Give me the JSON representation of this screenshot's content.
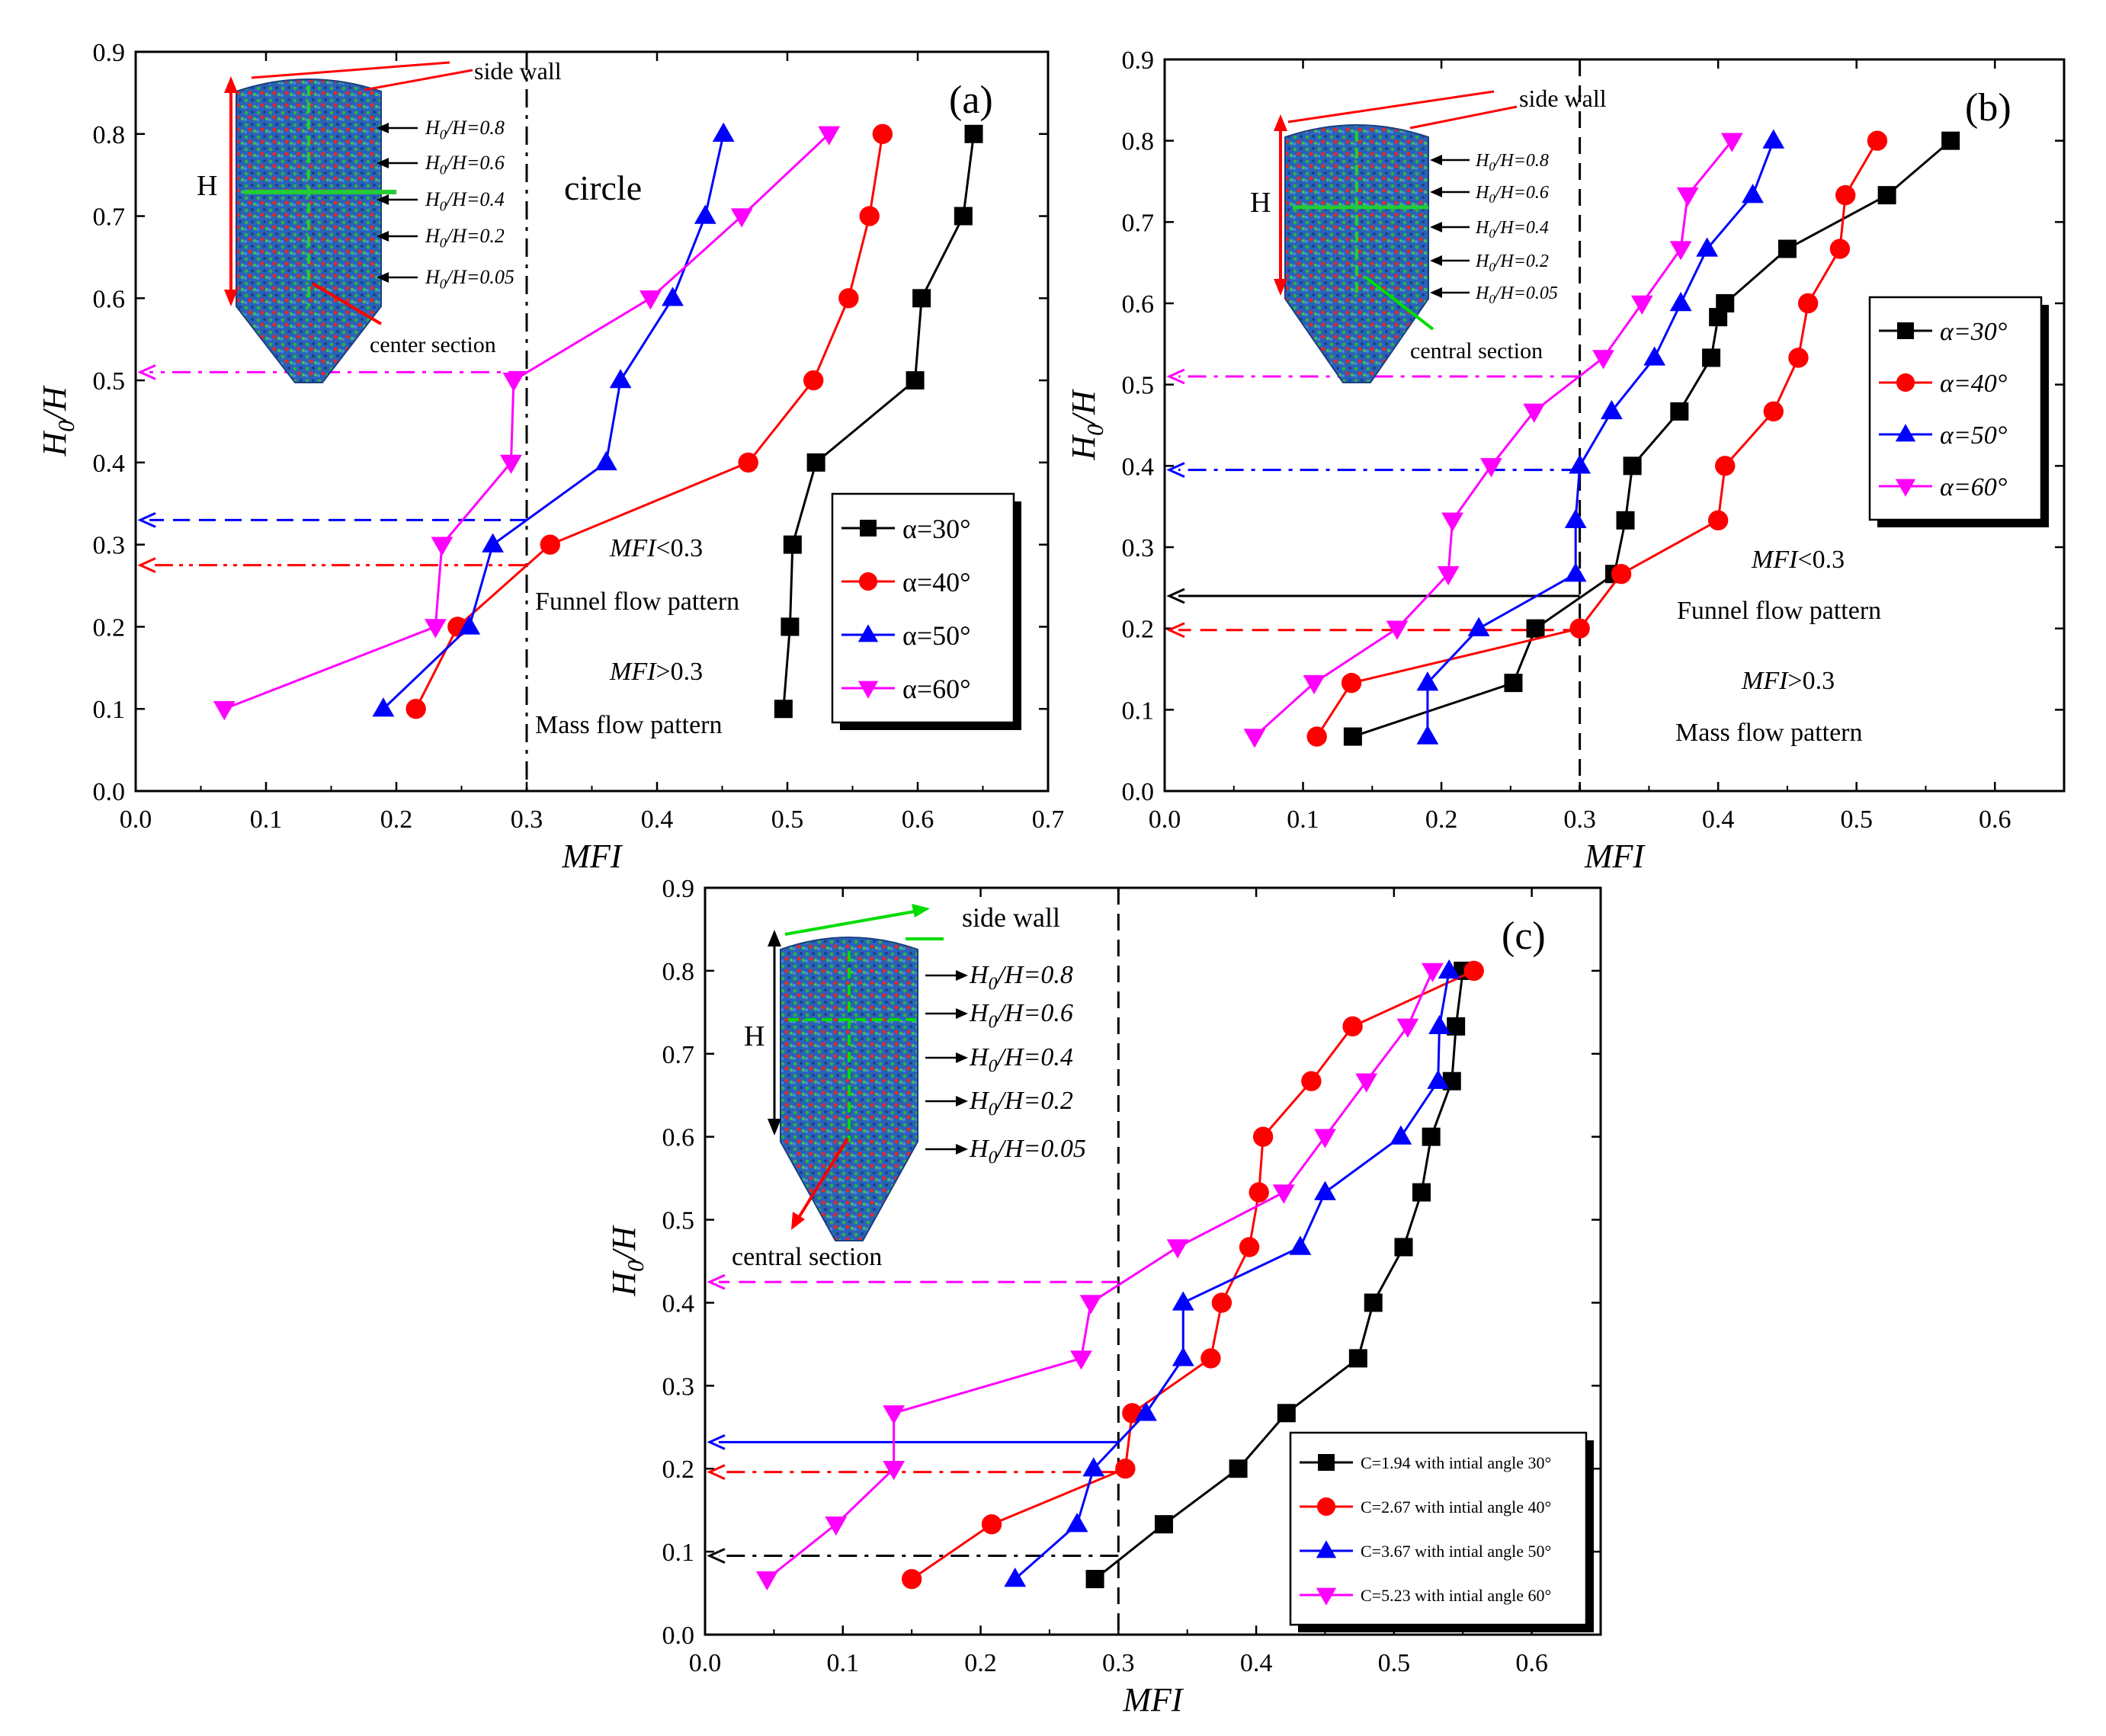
{
  "colors": {
    "black": "#000000",
    "red": "#ff0000",
    "blue": "#0000ff",
    "magenta": "#ff00ff",
    "green": "#00dd00"
  },
  "chart_data": [
    {
      "type": "line",
      "panel_label": "(a)",
      "xlabel": "MFI",
      "ylabel": "H0/H",
      "xlim": [
        0.0,
        0.7
      ],
      "ylim": [
        0.0,
        0.9
      ],
      "xticks": [
        "0.0",
        "0.1",
        "0.2",
        "0.3",
        "0.4",
        "0.5",
        "0.6",
        "0.7"
      ],
      "yticks": [
        "0.0",
        "0.1",
        "0.2",
        "0.3",
        "0.4",
        "0.5",
        "0.6",
        "0.7",
        "0.8",
        "0.9"
      ],
      "legend_position": "lower-right",
      "series": [
        {
          "name": "α=30°",
          "color": "#000000",
          "marker": "square",
          "x": [
            0.497,
            0.502,
            0.504,
            0.522,
            0.598,
            0.603,
            0.635,
            0.643
          ],
          "y": [
            0.1,
            0.2,
            0.3,
            0.4,
            0.5,
            0.6,
            0.7,
            0.8
          ]
        },
        {
          "name": "α=40°",
          "color": "#ff0000",
          "marker": "circle",
          "x": [
            0.215,
            0.247,
            0.318,
            0.47,
            0.52,
            0.547,
            0.563,
            0.573
          ],
          "y": [
            0.1,
            0.2,
            0.3,
            0.4,
            0.5,
            0.6,
            0.7,
            0.8
          ]
        },
        {
          "name": "α=50°",
          "color": "#0000ff",
          "marker": "triangle-up",
          "x": [
            0.19,
            0.256,
            0.274,
            0.361,
            0.372,
            0.412,
            0.437,
            0.451
          ],
          "y": [
            0.1,
            0.2,
            0.3,
            0.4,
            0.5,
            0.6,
            0.7,
            0.8
          ]
        },
        {
          "name": "α=60°",
          "color": "#ff00ff",
          "marker": "triangle-down",
          "x": [
            0.068,
            0.23,
            0.235,
            0.288,
            0.29,
            0.395,
            0.465,
            0.532
          ],
          "y": [
            0.1,
            0.2,
            0.3,
            0.4,
            0.5,
            0.6,
            0.7,
            0.8
          ]
        }
      ],
      "vline": {
        "x": 0.3,
        "style": "dashdot"
      },
      "hlines": [
        {
          "y": 0.51,
          "color": "#ff00ff",
          "style": "dashdot"
        },
        {
          "y": 0.33,
          "color": "#0000ff",
          "style": "dash"
        },
        {
          "y": 0.275,
          "color": "#ff0000",
          "style": "dashdotdot"
        }
      ],
      "annotations": [
        {
          "id": "mfi_lt",
          "text": "MFI<0.3"
        },
        {
          "id": "funnel",
          "text": "Funnel flow pattern"
        },
        {
          "id": "mfi_gt",
          "text": "MFI>0.3"
        },
        {
          "id": "mass",
          "text": "Mass flow pattern"
        },
        {
          "id": "shape",
          "text": "circle"
        }
      ],
      "inset": {
        "side_wall": "side wall",
        "center": "center section",
        "H": "H",
        "levels": [
          "H0/H=0.8",
          "H0/H=0.6",
          "H0/H=0.4",
          "H0/H=0.2",
          "H0/H=0.05"
        ]
      }
    },
    {
      "type": "line",
      "panel_label": "(b)",
      "xlabel": "MFI",
      "ylabel": "H0/H",
      "xlim": [
        0.0,
        0.65
      ],
      "ylim": [
        0.0,
        0.9
      ],
      "xticks": [
        "0.0",
        "0.1",
        "0.2",
        "0.3",
        "0.4",
        "0.5",
        "0.6"
      ],
      "yticks": [
        "0.0",
        "0.1",
        "0.2",
        "0.3",
        "0.4",
        "0.5",
        "0.6",
        "0.7",
        "0.8",
        "0.9"
      ],
      "legend_position": "upper-right",
      "series": [
        {
          "name": "α=30°",
          "color": "#000000",
          "marker": "square",
          "x": [
            0.136,
            0.252,
            0.268,
            0.325,
            0.333,
            0.338,
            0.372,
            0.395,
            0.4,
            0.405,
            0.45,
            0.522,
            0.568
          ],
          "y": [
            0.067,
            0.133,
            0.2,
            0.267,
            0.333,
            0.4,
            0.467,
            0.533,
            0.583,
            0.6,
            0.667,
            0.733,
            0.8
          ]
        },
        {
          "name": "α=40°",
          "color": "#ff0000",
          "marker": "circle",
          "x": [
            0.11,
            0.135,
            0.3,
            0.33,
            0.4,
            0.405,
            0.44,
            0.458,
            0.465,
            0.488,
            0.492,
            0.515
          ],
          "y": [
            0.067,
            0.133,
            0.2,
            0.267,
            0.333,
            0.4,
            0.467,
            0.533,
            0.6,
            0.667,
            0.733,
            0.8
          ]
        },
        {
          "name": "α=50°",
          "color": "#0000ff",
          "marker": "triangle-up",
          "x": [
            0.19,
            0.19,
            0.227,
            0.297,
            0.297,
            0.3,
            0.323,
            0.354,
            0.373,
            0.392,
            0.425,
            0.44
          ],
          "y": [
            0.067,
            0.133,
            0.2,
            0.267,
            0.333,
            0.4,
            0.467,
            0.533,
            0.6,
            0.667,
            0.733,
            0.8
          ]
        },
        {
          "name": "α=60°",
          "color": "#ff00ff",
          "marker": "triangle-down",
          "x": [
            0.065,
            0.108,
            0.168,
            0.205,
            0.208,
            0.236,
            0.267,
            0.317,
            0.345,
            0.373,
            0.378,
            0.41
          ],
          "y": [
            0.067,
            0.133,
            0.2,
            0.267,
            0.333,
            0.4,
            0.467,
            0.533,
            0.6,
            0.667,
            0.733,
            0.8
          ]
        }
      ],
      "vline": {
        "x": 0.3,
        "style": "dash"
      },
      "hlines": [
        {
          "y": 0.51,
          "color": "#ff00ff",
          "style": "dashdot"
        },
        {
          "y": 0.395,
          "color": "#0000ff",
          "style": "dashdot"
        },
        {
          "y": 0.24,
          "color": "#000000",
          "style": "solid"
        },
        {
          "y": 0.198,
          "color": "#ff0000",
          "style": "dash"
        }
      ],
      "annotations": [
        {
          "id": "mfi_lt",
          "text": "MFI<0.3"
        },
        {
          "id": "funnel",
          "text": "Funnel flow pattern"
        },
        {
          "id": "mfi_gt",
          "text": "MFI>0.3"
        },
        {
          "id": "mass",
          "text": "Mass flow pattern"
        }
      ],
      "inset": {
        "side_wall": "side wall",
        "center": "central section",
        "H": "H",
        "levels": [
          "H0/H=0.8",
          "H0/H=0.6",
          "H0/H=0.4",
          "H0/H=0.2",
          "H0/H=0.05"
        ]
      }
    },
    {
      "type": "line",
      "panel_label": "(c)",
      "xlabel": "MFI",
      "ylabel": "H0/H",
      "xlim": [
        0.0,
        0.65
      ],
      "ylim": [
        0.0,
        0.9
      ],
      "xticks": [
        "0.0",
        "0.1",
        "0.2",
        "0.3",
        "0.4",
        "0.5",
        "0.6"
      ],
      "yticks": [
        "0.0",
        "0.1",
        "0.2",
        "0.3",
        "0.4",
        "0.5",
        "0.6",
        "0.7",
        "0.8",
        "0.9"
      ],
      "legend_position": "lower-right",
      "series": [
        {
          "name": "C=1.94 with intial angle 30°",
          "color": "#000000",
          "marker": "square",
          "x": [
            0.283,
            0.333,
            0.387,
            0.422,
            0.474,
            0.485,
            0.507,
            0.52,
            0.527,
            0.542,
            0.545,
            0.55
          ],
          "y": [
            0.067,
            0.133,
            0.2,
            0.267,
            0.333,
            0.4,
            0.467,
            0.533,
            0.6,
            0.667,
            0.733,
            0.8
          ]
        },
        {
          "name": "C=2.67 with intial angle 40°",
          "color": "#ff0000",
          "marker": "circle",
          "x": [
            0.15,
            0.208,
            0.305,
            0.31,
            0.367,
            0.375,
            0.395,
            0.402,
            0.405,
            0.44,
            0.47,
            0.558
          ],
          "y": [
            0.067,
            0.133,
            0.2,
            0.267,
            0.333,
            0.4,
            0.467,
            0.533,
            0.6,
            0.667,
            0.733,
            0.8
          ]
        },
        {
          "name": "C=3.67 with intial angle 50°",
          "color": "#0000ff",
          "marker": "triangle-up",
          "x": [
            0.225,
            0.27,
            0.282,
            0.32,
            0.347,
            0.347,
            0.432,
            0.45,
            0.505,
            0.532,
            0.533,
            0.54
          ],
          "y": [
            0.067,
            0.133,
            0.2,
            0.267,
            0.333,
            0.4,
            0.467,
            0.533,
            0.6,
            0.667,
            0.733,
            0.8
          ]
        },
        {
          "name": "C=5.23 with intial angle 60°",
          "color": "#ff00ff",
          "marker": "triangle-down",
          "x": [
            0.045,
            0.095,
            0.137,
            0.137,
            0.273,
            0.28,
            0.343,
            0.42,
            0.45,
            0.48,
            0.51,
            0.528
          ],
          "y": [
            0.067,
            0.133,
            0.2,
            0.267,
            0.333,
            0.4,
            0.467,
            0.533,
            0.6,
            0.667,
            0.733,
            0.8
          ]
        }
      ],
      "vline": {
        "x": 0.3,
        "style": "dash"
      },
      "hlines": [
        {
          "y": 0.425,
          "color": "#ff00ff",
          "style": "dash"
        },
        {
          "y": 0.232,
          "color": "#0000ff",
          "style": "solid"
        },
        {
          "y": 0.196,
          "color": "#ff0000",
          "style": "dashdot"
        },
        {
          "y": 0.095,
          "color": "#000000",
          "style": "dashdot"
        }
      ],
      "annotations": [],
      "inset": {
        "side_wall": "side wall",
        "center": "central section",
        "H": "H",
        "levels": [
          "H0/H=0.8",
          "H0/H=0.6",
          "H0/H=0.4",
          "H0/H=0.2",
          "H0/H=0.05"
        ]
      }
    }
  ]
}
